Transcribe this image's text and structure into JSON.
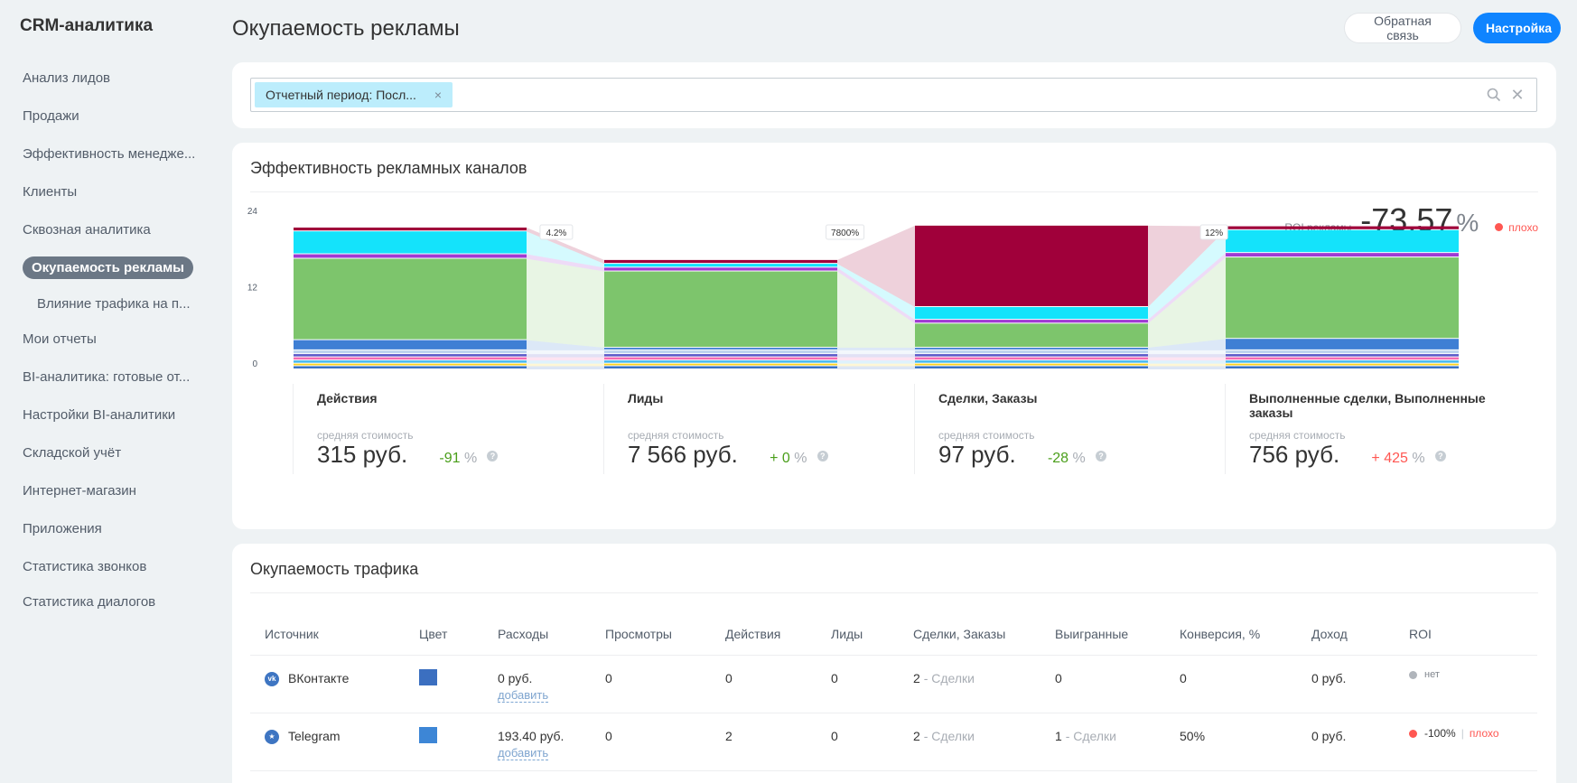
{
  "app": {
    "title": "CRM-аналитика"
  },
  "sidebar": {
    "items": [
      {
        "label": "Анализ лидов"
      },
      {
        "label": "Продажи"
      },
      {
        "label": "Эффективность менедже..."
      },
      {
        "label": "Клиенты"
      },
      {
        "label": "Сквозная аналитика"
      },
      {
        "label": "Окупаемость рекламы"
      },
      {
        "label": "Влияние трафика на п..."
      },
      {
        "label": "Мои отчеты"
      },
      {
        "label": "BI-аналитика: готовые от..."
      },
      {
        "label": "Настройки BI-аналитики"
      },
      {
        "label": "Складской учёт"
      },
      {
        "label": "Интернет-магазин"
      },
      {
        "label": "Приложения"
      },
      {
        "label": "Статистика звонков"
      },
      {
        "label": "Статистика диалогов"
      }
    ]
  },
  "header": {
    "title": "Окупаемость рекламы",
    "feedback_label": "Обратная связь",
    "settings_label": "Настройка"
  },
  "filter": {
    "chip_label": "Отчетный период: Посл...",
    "chip_close": "×",
    "clear": "✕"
  },
  "channels": {
    "title": "Эффективность рекламных каналов",
    "roi_label": "ROI рекламы",
    "roi_value": "-73.57",
    "roi_unit": "%",
    "roi_status": "плохо",
    "stages": [
      {
        "name": "Действия",
        "sub": "средняя стоимость",
        "cost": "315 руб.",
        "delta": "-91",
        "pct": "%",
        "trend": "good"
      },
      {
        "name": "Лиды",
        "sub": "средняя стоимость",
        "cost": "7 566 руб.",
        "delta": "+ 0",
        "pct": "%",
        "trend": "good"
      },
      {
        "name": "Сделки, Заказы",
        "sub": "средняя стоимость",
        "cost": "97 руб.",
        "delta": "-28",
        "pct": "%",
        "trend": "good"
      },
      {
        "name": "Выполненные сделки, Выполненные заказы",
        "sub": "средняя стоимость",
        "cost": "756 руб.",
        "delta": "+ 425",
        "pct": "%",
        "trend": "bad"
      }
    ],
    "help": "?"
  },
  "chart_data": {
    "type": "bar",
    "stacked": true,
    "y_ticks": [
      "0",
      "12",
      "24"
    ],
    "ylim": [
      0,
      24
    ],
    "categories": [
      "Действия",
      "Лиды",
      "Сделки, Заказы",
      "Выполненные сделки, Выполненные заказы"
    ],
    "segment_colors": [
      "#3b72c4",
      "#fcd21d",
      "#46b9f0",
      "#f36bb5",
      "#5a58c8",
      "#bdd3ee",
      "#3f7fd4",
      "#7dc56c",
      "#a03ad2",
      "#14e3fb",
      "#a0003a"
    ],
    "series_values": [
      [
        0.5,
        0.5,
        0.5,
        0.5
      ],
      [
        0.4,
        0.4,
        0.4,
        0.4
      ],
      [
        0.5,
        0.5,
        0.5,
        0.5
      ],
      [
        0.5,
        0.5,
        0.5,
        0.5
      ],
      [
        0.5,
        0.5,
        0.5,
        0.5
      ],
      [
        0.6,
        0.6,
        0.6,
        0.6
      ],
      [
        1.6,
        0.4,
        0.4,
        1.8
      ],
      [
        12.8,
        12.0,
        3.8,
        12.8
      ],
      [
        0.7,
        0.6,
        0.6,
        0.7
      ],
      [
        3.6,
        0.6,
        2.0,
        3.6
      ],
      [
        0.6,
        0.6,
        12.8,
        0.6
      ]
    ],
    "conversion_labels": [
      "4.2%",
      "7800%",
      "12%"
    ]
  },
  "traffic": {
    "title": "Окупаемость трафика",
    "columns": [
      "Источник",
      "Цвет",
      "Расходы",
      "Просмотры",
      "Действия",
      "Лиды",
      "Сделки, Заказы",
      "Выигранные",
      "Конверсия, %",
      "Доход",
      "ROI"
    ],
    "rows": [
      {
        "source": "ВКонтакте",
        "icon": "vk-icon",
        "icon_text": "vk",
        "color": "#3b6fc0",
        "expenses": "0 руб.",
        "add": "добавить",
        "views": "0",
        "actions": "0",
        "leads": "0",
        "deals": "2",
        "deals_suffix": "- Сделки",
        "won": "0",
        "won_suffix": "",
        "conversion": "0",
        "income": "0 руб.",
        "roi": "нет",
        "roi_status": "",
        "roi_color": "#b0b5bb"
      },
      {
        "source": "Telegram",
        "icon": "telegram-icon",
        "icon_text": "★",
        "color": "#3d86d6",
        "expenses": "193.40 руб.",
        "add": "добавить",
        "views": "0",
        "actions": "2",
        "leads": "0",
        "deals": "2",
        "deals_suffix": "- Сделки",
        "won": "1",
        "won_suffix": "- Сделки",
        "conversion": "50%",
        "income": "0 руб.",
        "roi": "-100%",
        "roi_status": "плохо",
        "roi_color": "#ff5752"
      }
    ]
  }
}
